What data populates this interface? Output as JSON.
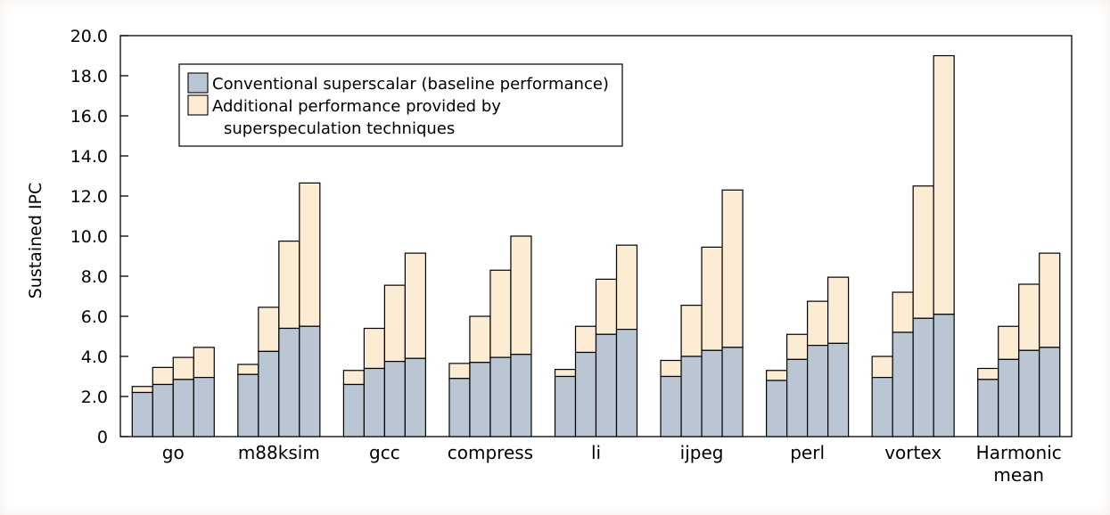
{
  "chart_data": {
    "type": "bar",
    "stacked": true,
    "grouped": true,
    "ylabel": "Sustained IPC",
    "ylim": [
      0,
      20
    ],
    "y_ticks": [
      "0",
      "2.0",
      "4.0",
      "6.0",
      "8.0",
      "10.0",
      "12.0",
      "14.0",
      "16.0",
      "18.0",
      "20.0"
    ],
    "categories": [
      {
        "label": [
          "go"
        ],
        "baseline": [
          2.2,
          2.6,
          2.85,
          2.95
        ],
        "total": [
          2.5,
          3.45,
          3.95,
          4.45
        ]
      },
      {
        "label": [
          "m88ksim"
        ],
        "baseline": [
          3.1,
          4.25,
          5.4,
          5.5
        ],
        "total": [
          3.6,
          6.45,
          9.75,
          12.65
        ]
      },
      {
        "label": [
          "gcc"
        ],
        "baseline": [
          2.6,
          3.4,
          3.75,
          3.9
        ],
        "total": [
          3.3,
          5.4,
          7.55,
          9.15
        ]
      },
      {
        "label": [
          "compress"
        ],
        "baseline": [
          2.9,
          3.7,
          3.95,
          4.1
        ],
        "total": [
          3.65,
          6.0,
          8.3,
          10.0
        ]
      },
      {
        "label": [
          "li"
        ],
        "baseline": [
          3.0,
          4.2,
          5.1,
          5.35
        ],
        "total": [
          3.35,
          5.5,
          7.85,
          9.55
        ]
      },
      {
        "label": [
          "ijpeg"
        ],
        "baseline": [
          3.0,
          4.0,
          4.3,
          4.45
        ],
        "total": [
          3.8,
          6.55,
          9.45,
          12.3
        ]
      },
      {
        "label": [
          "perl"
        ],
        "baseline": [
          2.8,
          3.85,
          4.55,
          4.65
        ],
        "total": [
          3.3,
          5.1,
          6.75,
          7.95
        ]
      },
      {
        "label": [
          "vortex"
        ],
        "baseline": [
          2.95,
          5.2,
          5.9,
          6.1
        ],
        "total": [
          4.0,
          7.2,
          12.5,
          19.0
        ]
      },
      {
        "label": [
          "Harmonic",
          "mean"
        ],
        "baseline": [
          2.85,
          3.85,
          4.3,
          4.45
        ],
        "total": [
          3.4,
          5.5,
          7.6,
          9.15
        ]
      }
    ],
    "series": [
      {
        "name": "Conventional superscalar (baseline performance)",
        "color": "#bac6d3"
      },
      {
        "name": [
          "Additional performance provided by",
          "superspeculation techniques"
        ],
        "color": "#fdecd4"
      }
    ],
    "legend_position": "top-left",
    "grid": false
  }
}
